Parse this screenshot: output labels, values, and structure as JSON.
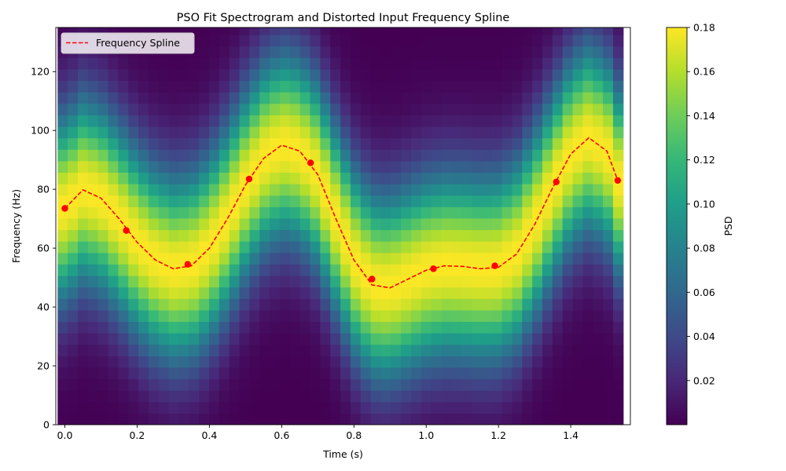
{
  "chart_data": {
    "type": "heatmap",
    "title": "PSO Fit Spectrogram and Distorted Input Frequency Spline",
    "xlabel": "Time (s)",
    "ylabel": "Frequency (Hz)",
    "xlim": [
      -0.025,
      1.565
    ],
    "ylim": [
      0,
      135
    ],
    "x_ticks": [
      0.0,
      0.2,
      0.4,
      0.6,
      0.8,
      1.0,
      1.2,
      1.4
    ],
    "x_tick_labels": [
      "0.0",
      "0.2",
      "0.4",
      "0.6",
      "0.8",
      "1.0",
      "1.2",
      "1.4"
    ],
    "y_ticks": [
      0,
      20,
      40,
      60,
      80,
      100,
      120
    ],
    "y_tick_labels": [
      "0",
      "20",
      "40",
      "60",
      "80",
      "100",
      "120"
    ],
    "legend": {
      "position": "top-left",
      "entries": [
        "Frequency Spline"
      ]
    },
    "colorbar": {
      "label": "PSD",
      "colormap": "viridis",
      "range": [
        0.0,
        0.18
      ],
      "ticks": [
        0.02,
        0.04,
        0.06,
        0.08,
        0.1,
        0.12,
        0.14,
        0.16,
        0.18
      ],
      "tick_labels": [
        "0.02",
        "0.04",
        "0.06",
        "0.08",
        "0.10",
        "0.12",
        "0.14",
        "0.16",
        "0.18"
      ]
    },
    "spectrogram": {
      "time_start": -0.02,
      "time_end": 1.545,
      "time_bins": 56,
      "freq_bin_width": 3.9,
      "freq_bins": 35,
      "peak_psd": 0.18,
      "band_sigma_hz": 22
    },
    "series": [
      {
        "name": "Frequency Spline",
        "style": "dashed",
        "color": "#ff0000",
        "x": [
          0.0,
          0.05,
          0.1,
          0.15,
          0.2,
          0.25,
          0.3,
          0.35,
          0.4,
          0.45,
          0.5,
          0.55,
          0.6,
          0.65,
          0.7,
          0.75,
          0.8,
          0.85,
          0.9,
          0.95,
          1.0,
          1.05,
          1.1,
          1.15,
          1.2,
          1.25,
          1.3,
          1.35,
          1.4,
          1.45,
          1.5,
          1.53
        ],
        "y": [
          73.5,
          79.8,
          77.0,
          70.0,
          62.0,
          56.0,
          53.0,
          54.0,
          60.0,
          70.0,
          81.5,
          90.5,
          95.0,
          93.0,
          85.0,
          70.0,
          56.0,
          47.5,
          46.5,
          49.5,
          52.5,
          54.0,
          53.8,
          53.0,
          53.5,
          58.0,
          68.0,
          80.5,
          92.0,
          97.5,
          93.0,
          83.0
        ]
      }
    ],
    "control_points": {
      "color": "#ff0000",
      "x": [
        0.0,
        0.17,
        0.34,
        0.51,
        0.68,
        0.85,
        1.02,
        1.19,
        1.36,
        1.53
      ],
      "y": [
        73.5,
        66.0,
        54.5,
        83.5,
        89.0,
        49.5,
        53.0,
        54.0,
        82.5,
        83.0
      ]
    }
  }
}
